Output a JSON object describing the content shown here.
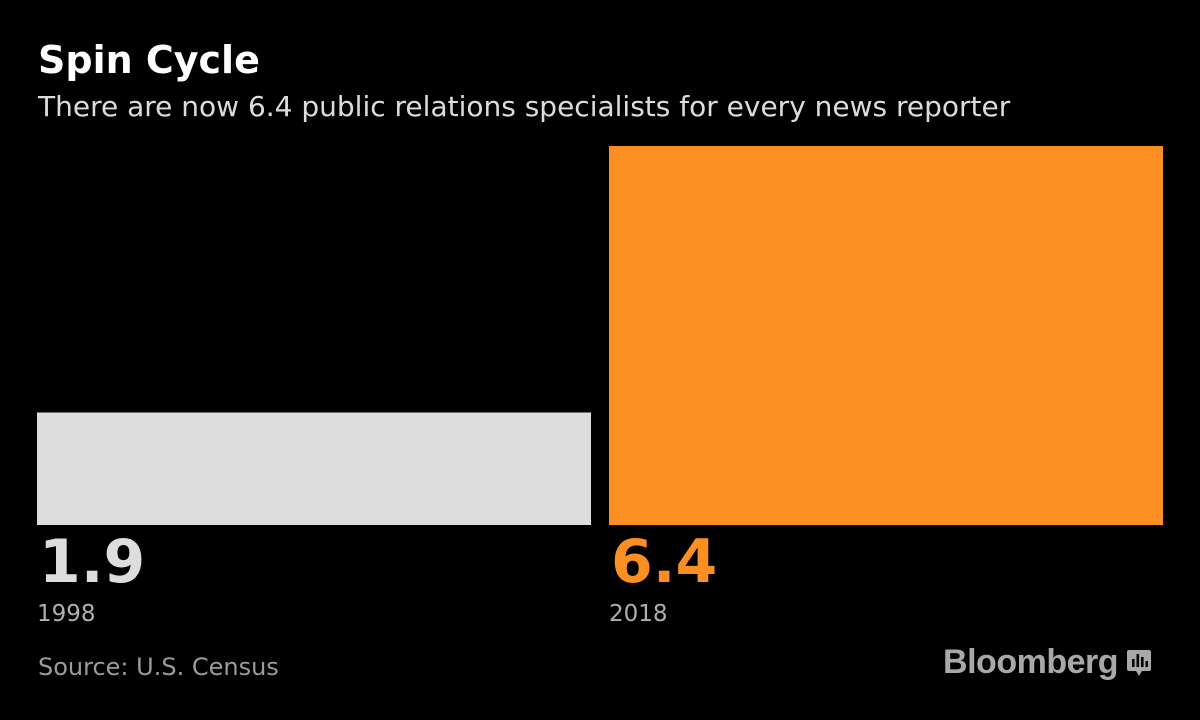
{
  "header": {
    "title": "Spin Cycle",
    "subtitle": "There are now 6.4 public relations specialists for every news reporter"
  },
  "footer": {
    "source": "Source: U.S. Census",
    "brand": "Bloomberg",
    "brand_icon": "bloomberg-chart-icon"
  },
  "colors": {
    "background": "#000000",
    "bar_1998": "#dddddd",
    "bar_2018": "#fb8f21",
    "label_1998": "#dddddd",
    "label_2018": "#fb8f21",
    "category_text": "#b0b0b0"
  },
  "chart_data": {
    "type": "bar",
    "categories": [
      "1998",
      "2018"
    ],
    "values": [
      1.9,
      6.4
    ],
    "value_labels": [
      "1.9",
      "6.4"
    ],
    "title": "Spin Cycle",
    "subtitle": "There are now 6.4 public relations specialists for every news reporter",
    "xlabel": "",
    "ylabel": "",
    "ylim": [
      0,
      6.4
    ],
    "grid": false,
    "legend": "none"
  }
}
